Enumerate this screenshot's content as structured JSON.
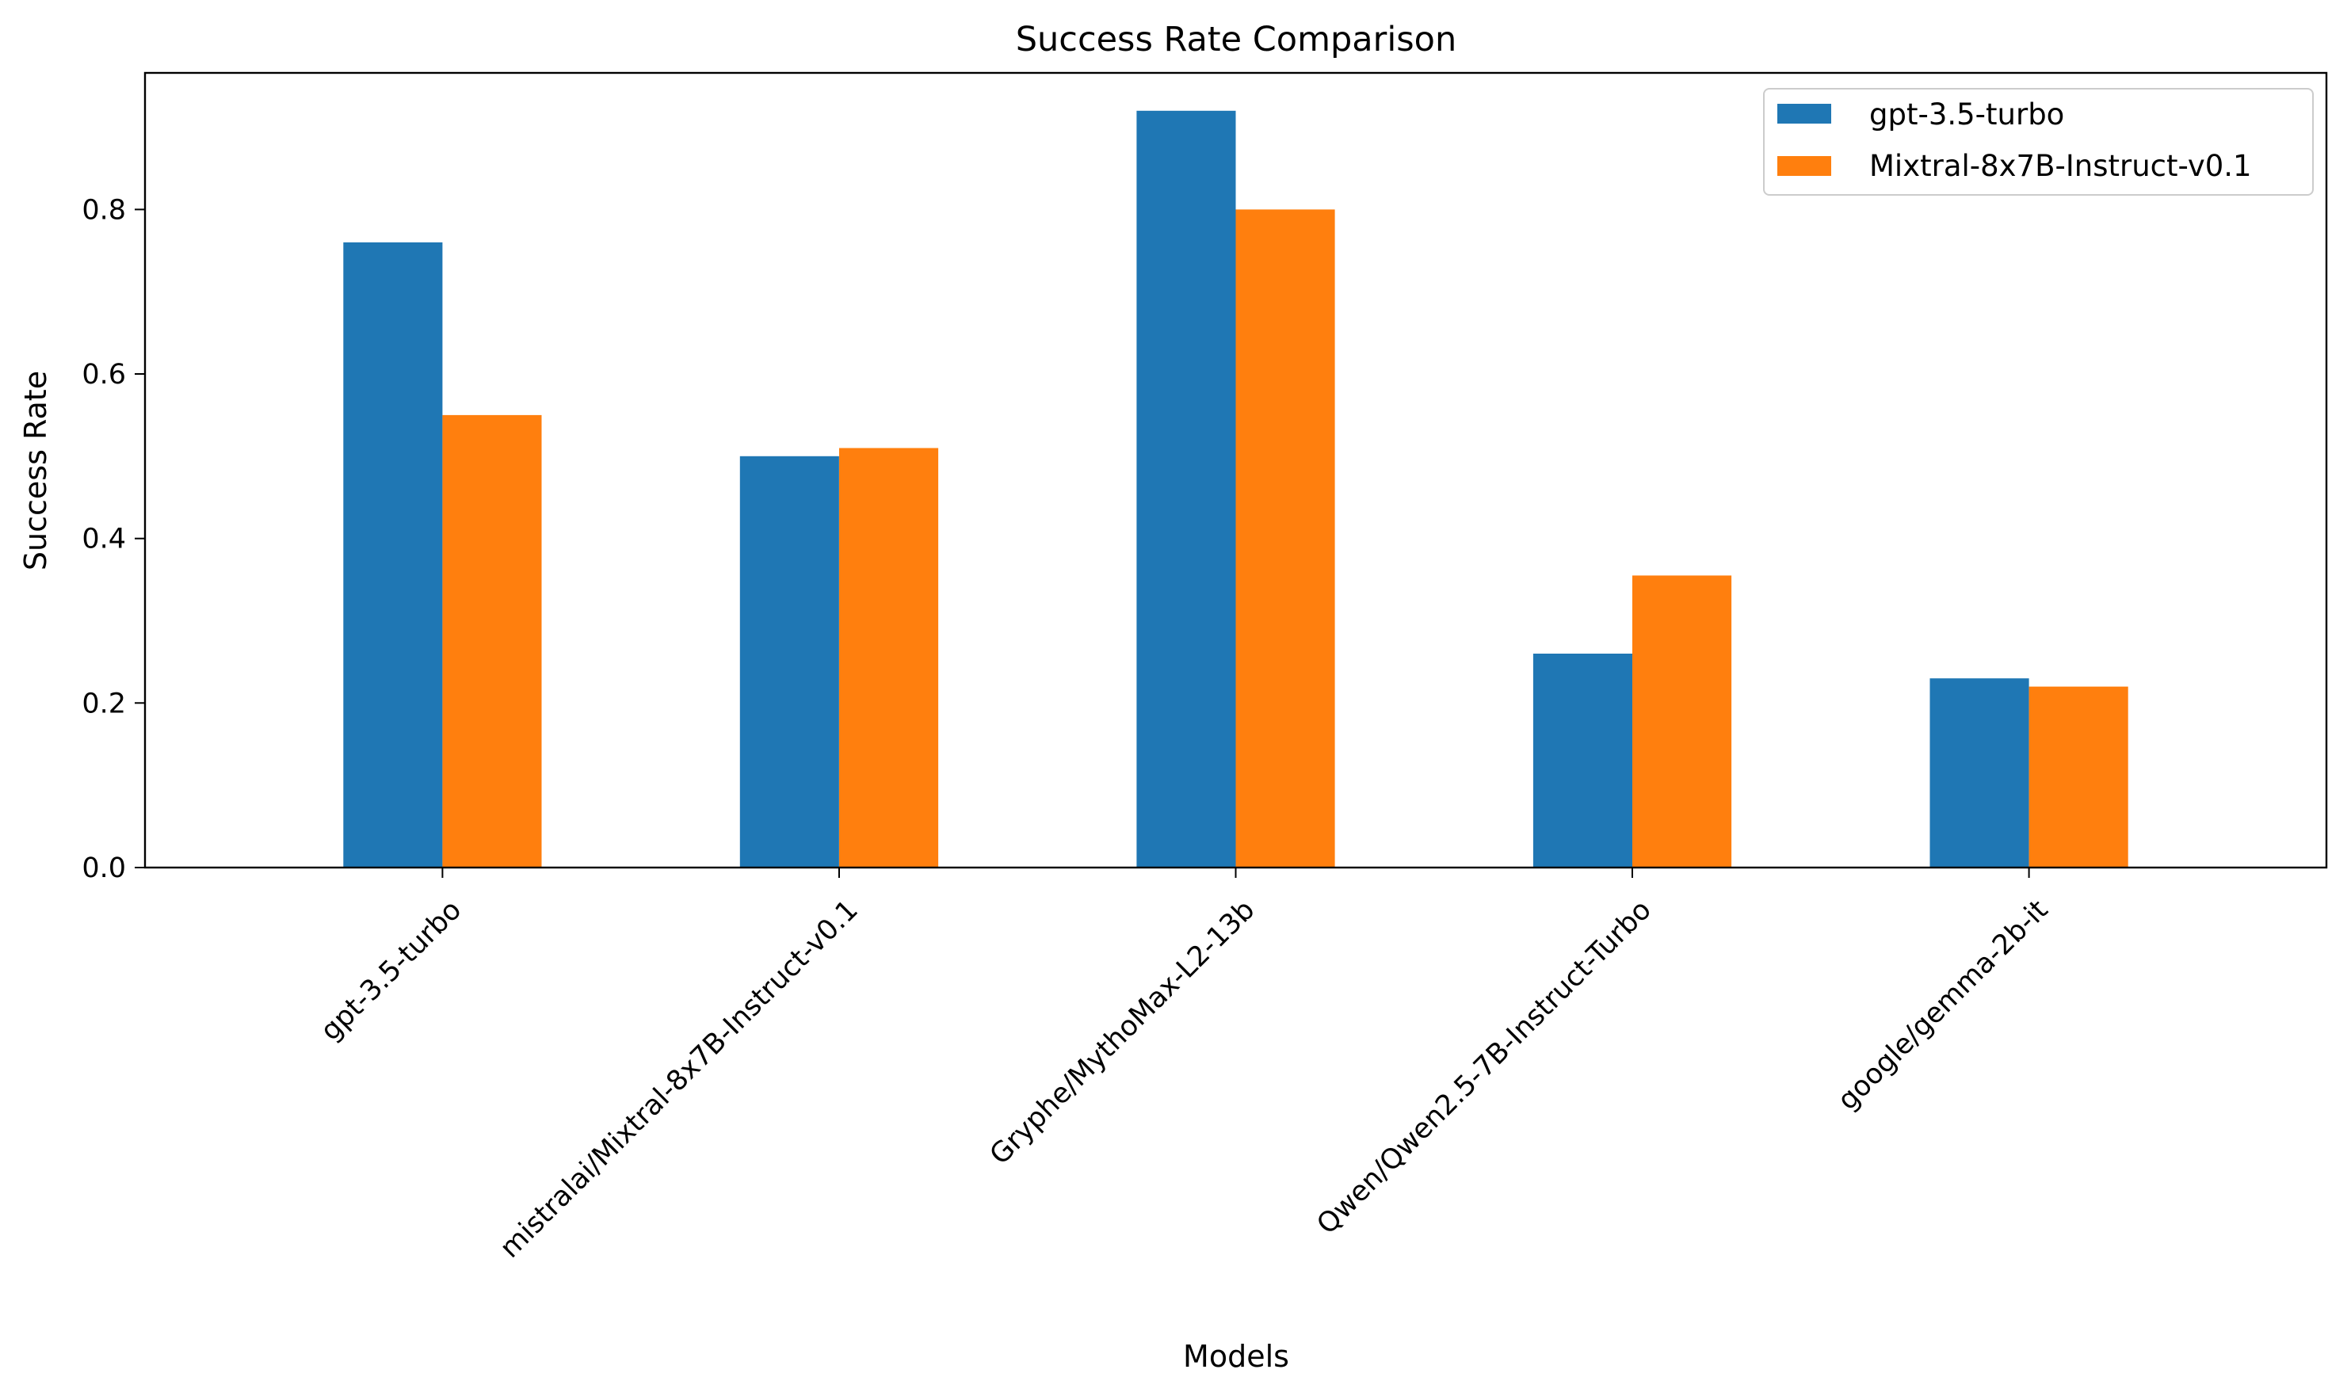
{
  "chart_data": {
    "type": "bar",
    "title": "Success Rate Comparison",
    "xlabel": "Models",
    "ylabel": "Success Rate",
    "categories": [
      "gpt-3.5-turbo",
      "mistralai/Mixtral-8x7B-Instruct-v0.1",
      "Gryphe/MythoMax-L2-13b",
      "Qwen/Qwen2.5-7B-Instruct-Turbo",
      "google/gemma-2b-it"
    ],
    "series": [
      {
        "name": "gpt-3.5-turbo",
        "color": "#1f77b4",
        "values": [
          0.76,
          0.5,
          0.92,
          0.26,
          0.23
        ]
      },
      {
        "name": "Mixtral-8x7B-Instruct-v0.1",
        "color": "#ff7f0e",
        "values": [
          0.55,
          0.51,
          0.8,
          0.355,
          0.22
        ]
      }
    ],
    "ylim": [
      0,
      0.966
    ],
    "yticks": [
      "0.0",
      "0.2",
      "0.4",
      "0.6",
      "0.8"
    ],
    "grid": false,
    "legend_position": "top-right"
  }
}
